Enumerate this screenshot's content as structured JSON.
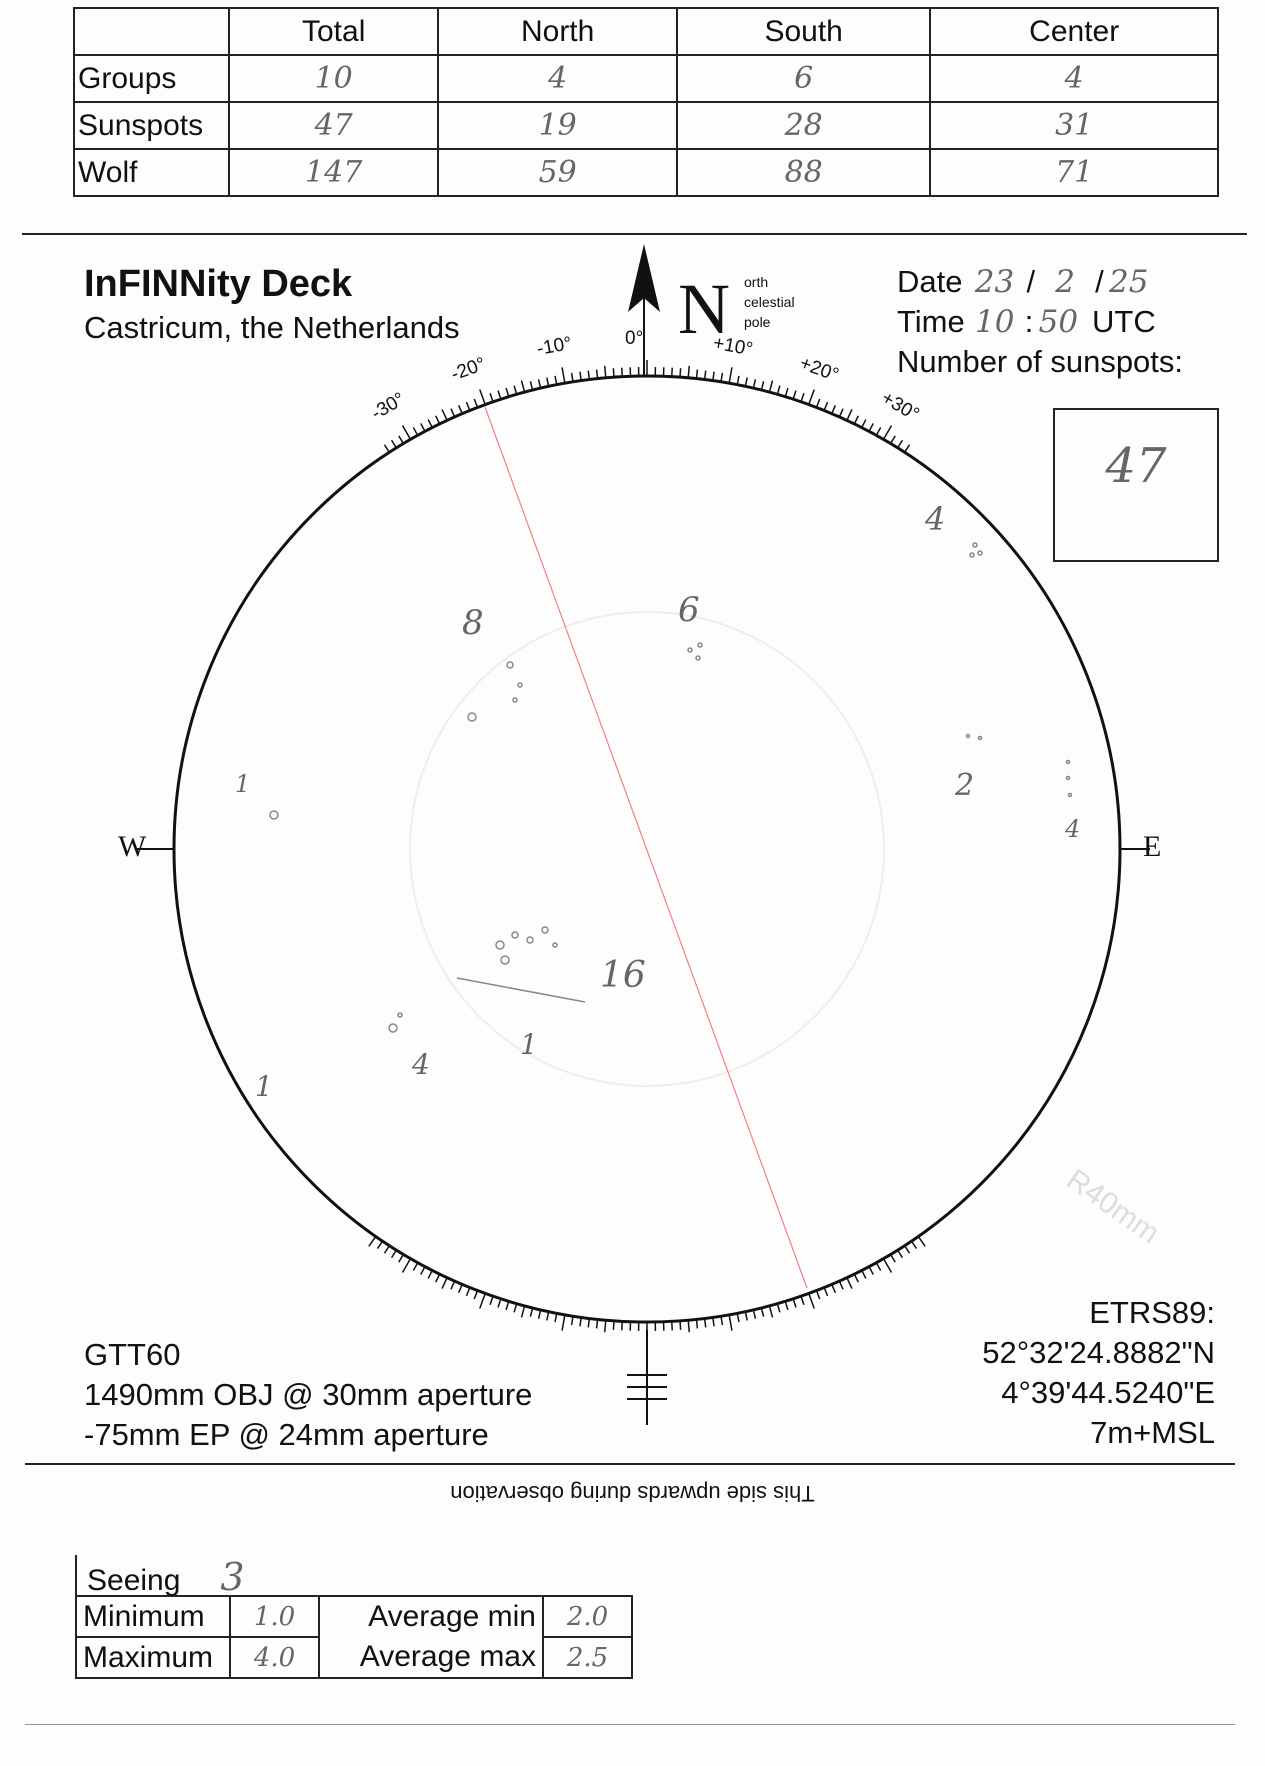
{
  "counts_table": {
    "headers": [
      "",
      "Total",
      "North",
      "South",
      "Center"
    ],
    "rows": [
      {
        "label": "Groups",
        "values": [
          "10",
          "4",
          "6",
          "4"
        ]
      },
      {
        "label": "Sunspots",
        "values": [
          "47",
          "19",
          "28",
          "31"
        ]
      },
      {
        "label": "Wolf",
        "values": [
          "147",
          "59",
          "88",
          "71"
        ]
      }
    ]
  },
  "header": {
    "title": "InFINNity Deck",
    "location": "Castricum, the Netherlands"
  },
  "north_marker": {
    "letter": "N",
    "caption": [
      "orth",
      "celestial",
      "pole"
    ]
  },
  "observation": {
    "date_label": "Date",
    "day": "23",
    "month": "2",
    "year": "25",
    "date_sep": "/",
    "time_label": "Time",
    "hour": "10",
    "minute": "50",
    "time_sep": ":",
    "utc": "UTC",
    "sunspots_label": "Number of sunspots:",
    "sunspots_value": "47"
  },
  "disk": {
    "degree_labels": [
      "-30°",
      "-20°",
      "-10°",
      "0°",
      "+10°",
      "+20°",
      "+30°"
    ],
    "west": "W",
    "east": "E",
    "radius_label": "R40mm",
    "annotations": [
      "4",
      "6",
      "8",
      "2",
      "4",
      "1",
      "16",
      "4",
      "1",
      "1"
    ],
    "equator_line_color": "#f08080"
  },
  "instrument": {
    "name": "GTT60",
    "objective": "1490mm OBJ @ 30mm aperture",
    "eyepiece": "-75mm EP @ 24mm aperture"
  },
  "coordinates": {
    "datum": "ETRS89:",
    "lat": "52°32'24.8882\"N",
    "lon": "4°39'44.5240\"E",
    "alt": "7m+MSL"
  },
  "orientation_note": "This side upwards during observation",
  "seeing": {
    "label": "Seeing",
    "value": "3",
    "min_label": "Minimum",
    "min": "1.0",
    "max_label": "Maximum",
    "max": "4.0",
    "avg_min_label": "Average min",
    "avg_min": "2.0",
    "avg_max_label": "Average max",
    "avg_max": "2.5"
  }
}
